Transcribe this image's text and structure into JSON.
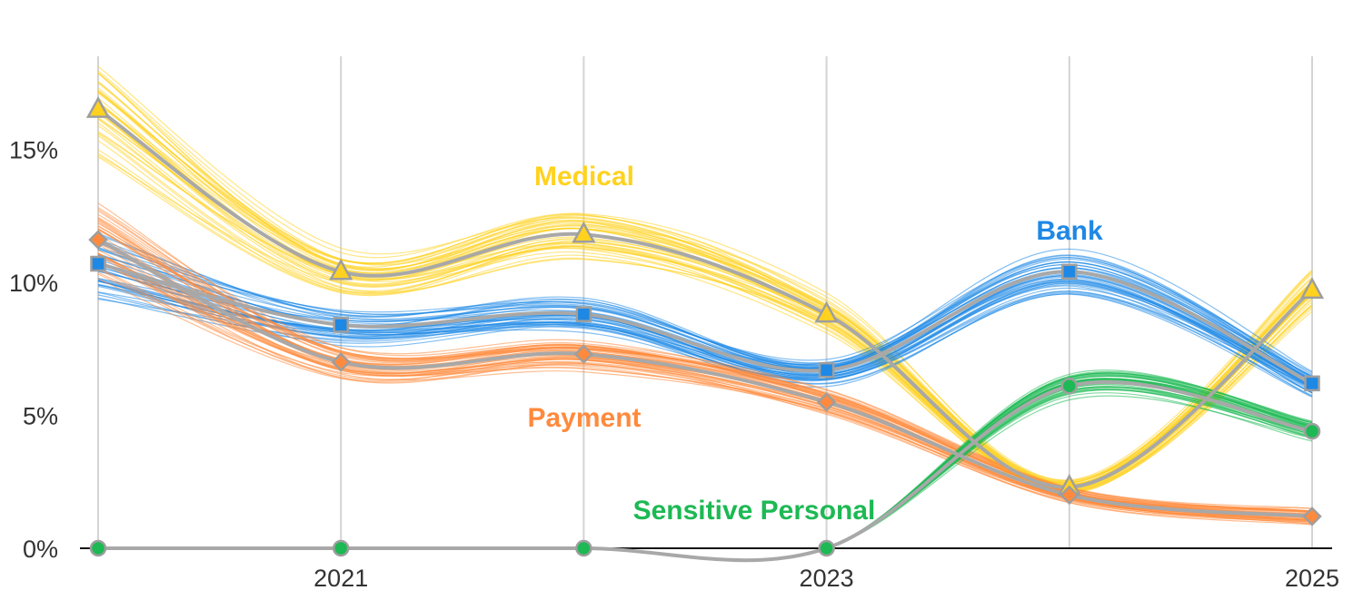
{
  "chart_data": {
    "type": "line",
    "title": "",
    "xlabel": "",
    "ylabel": "",
    "x": [
      2020,
      2021,
      2022,
      2023,
      2024,
      2025
    ],
    "x_tick_labels": [
      {
        "x": 2021,
        "label": "2021"
      },
      {
        "x": 2023,
        "label": "2023"
      },
      {
        "x": 2025,
        "label": "2025"
      }
    ],
    "y_tick_labels": [
      {
        "y": 0,
        "label": "0%"
      },
      {
        "y": 5,
        "label": "5%"
      },
      {
        "y": 10,
        "label": "10%"
      },
      {
        "y": 15,
        "label": "15%"
      }
    ],
    "xlim": [
      2019.92,
      2025.08
    ],
    "ylim": [
      0,
      18.5
    ],
    "grid": {
      "vertical": true,
      "horizontal": false
    },
    "uncertainty_bands": true,
    "series": [
      {
        "name": "Medical",
        "marker": "triangle",
        "color": "#FFD21F",
        "values": [
          16.5,
          10.4,
          11.8,
          8.8,
          2.3,
          9.7
        ]
      },
      {
        "name": "Bank",
        "marker": "square",
        "color": "#1E88E5",
        "values": [
          10.7,
          8.4,
          8.8,
          6.7,
          10.4,
          6.2
        ]
      },
      {
        "name": "Payment",
        "marker": "diamond",
        "color": "#FF8A3D",
        "values": [
          11.6,
          7.0,
          7.3,
          5.5,
          2.0,
          1.2
        ]
      },
      {
        "name": "Sensitive Personal",
        "marker": "circle",
        "color": "#1DB954",
        "values": [
          0.0,
          0.0,
          0.0,
          0.0,
          6.1,
          4.4
        ]
      }
    ]
  }
}
